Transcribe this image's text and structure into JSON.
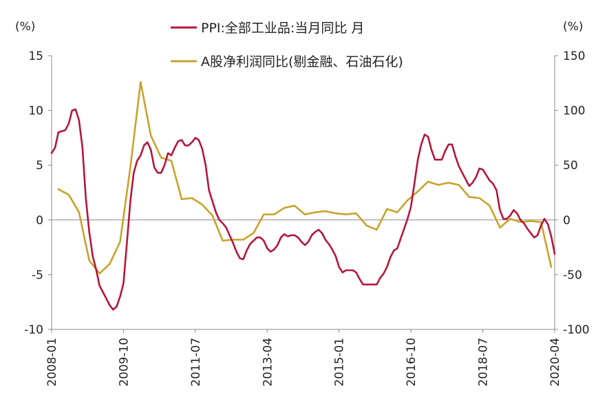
{
  "chart_data": {
    "type": "line",
    "left_unit": "(%)",
    "right_unit": "(%)",
    "y_left": {
      "min": -10,
      "max": 15,
      "ticks": [
        15,
        10,
        5,
        0,
        -5,
        -10
      ]
    },
    "y_right": {
      "min": -100,
      "max": 150,
      "ticks": [
        150,
        100,
        50,
        0,
        -50,
        -100
      ]
    },
    "x_range": [
      "2008-01",
      "2020-04"
    ],
    "x_ticks": [
      "2008-01",
      "2009-10",
      "2011-07",
      "2013-04",
      "2015-01",
      "2016-10",
      "2018-07",
      "2020-04"
    ],
    "colors": {
      "ppi": "#b5153a",
      "profit": "#c9a22a",
      "axis": "#888888"
    },
    "series": [
      {
        "name": "PPI:全部工业品:当月同比 月",
        "axis": "left",
        "x": [
          "2008-01",
          "2008-02",
          "2008-03",
          "2008-04",
          "2008-05",
          "2008-06",
          "2008-07",
          "2008-08",
          "2008-09",
          "2008-10",
          "2008-11",
          "2008-12",
          "2009-01",
          "2009-02",
          "2009-03",
          "2009-04",
          "2009-05",
          "2009-06",
          "2009-07",
          "2009-08",
          "2009-09",
          "2009-10",
          "2009-11",
          "2009-12",
          "2010-01",
          "2010-02",
          "2010-03",
          "2010-04",
          "2010-05",
          "2010-06",
          "2010-07",
          "2010-08",
          "2010-09",
          "2010-10",
          "2010-11",
          "2010-12",
          "2011-01",
          "2011-02",
          "2011-03",
          "2011-04",
          "2011-05",
          "2011-06",
          "2011-07",
          "2011-08",
          "2011-09",
          "2011-10",
          "2011-11",
          "2011-12",
          "2012-01",
          "2012-02",
          "2012-03",
          "2012-04",
          "2012-05",
          "2012-06",
          "2012-07",
          "2012-08",
          "2012-09",
          "2012-10",
          "2012-11",
          "2012-12",
          "2013-01",
          "2013-02",
          "2013-03",
          "2013-04",
          "2013-05",
          "2013-06",
          "2013-07",
          "2013-08",
          "2013-09",
          "2013-10",
          "2013-11",
          "2013-12",
          "2014-01",
          "2014-02",
          "2014-03",
          "2014-04",
          "2014-05",
          "2014-06",
          "2014-07",
          "2014-08",
          "2014-09",
          "2014-10",
          "2014-11",
          "2014-12",
          "2015-01",
          "2015-02",
          "2015-03",
          "2015-04",
          "2015-05",
          "2015-06",
          "2015-07",
          "2015-08",
          "2015-09",
          "2015-10",
          "2015-11",
          "2015-12",
          "2016-01",
          "2016-02",
          "2016-03",
          "2016-04",
          "2016-05",
          "2016-06",
          "2016-07",
          "2016-08",
          "2016-09",
          "2016-10",
          "2016-11",
          "2016-12",
          "2017-01",
          "2017-02",
          "2017-03",
          "2017-04",
          "2017-05",
          "2017-06",
          "2017-07",
          "2017-08",
          "2017-09",
          "2017-10",
          "2017-11",
          "2017-12",
          "2018-01",
          "2018-02",
          "2018-03",
          "2018-04",
          "2018-05",
          "2018-06",
          "2018-07",
          "2018-08",
          "2018-09",
          "2018-10",
          "2018-11",
          "2018-12",
          "2019-01",
          "2019-02",
          "2019-03",
          "2019-04",
          "2019-05",
          "2019-06",
          "2019-07",
          "2019-08",
          "2019-09",
          "2019-10",
          "2019-11",
          "2019-12",
          "2020-01",
          "2020-02",
          "2020-03",
          "2020-04"
        ],
        "values": [
          6.1,
          6.6,
          8.0,
          8.1,
          8.2,
          8.8,
          10.0,
          10.1,
          9.1,
          6.6,
          2.0,
          -1.1,
          -3.3,
          -4.5,
          -6.0,
          -6.6,
          -7.2,
          -7.8,
          -8.2,
          -7.9,
          -7.0,
          -5.8,
          -2.1,
          1.7,
          4.3,
          5.4,
          5.9,
          6.8,
          7.1,
          6.4,
          4.8,
          4.3,
          4.3,
          5.0,
          6.1,
          5.9,
          6.6,
          7.2,
          7.3,
          6.8,
          6.8,
          7.1,
          7.5,
          7.3,
          6.5,
          5.0,
          2.7,
          1.7,
          0.7,
          0.0,
          -0.3,
          -0.7,
          -1.4,
          -2.1,
          -2.9,
          -3.5,
          -3.6,
          -2.8,
          -2.2,
          -1.9,
          -1.6,
          -1.6,
          -1.9,
          -2.6,
          -2.9,
          -2.7,
          -2.3,
          -1.6,
          -1.3,
          -1.5,
          -1.4,
          -1.4,
          -1.6,
          -2.0,
          -2.3,
          -2.0,
          -1.4,
          -1.1,
          -0.9,
          -1.2,
          -1.8,
          -2.2,
          -2.7,
          -3.3,
          -4.3,
          -4.8,
          -4.6,
          -4.6,
          -4.6,
          -4.8,
          -5.4,
          -5.9,
          -5.9,
          -5.9,
          -5.9,
          -5.9,
          -5.3,
          -4.9,
          -4.3,
          -3.4,
          -2.8,
          -2.6,
          -1.7,
          -0.8,
          0.1,
          1.2,
          3.3,
          5.5,
          6.9,
          7.8,
          7.6,
          6.4,
          5.5,
          5.5,
          5.5,
          6.3,
          6.9,
          6.9,
          5.8,
          4.9,
          4.3,
          3.7,
          3.1,
          3.4,
          3.9,
          4.7,
          4.6,
          4.1,
          3.6,
          3.3,
          2.7,
          0.9,
          0.1,
          0.1,
          0.4,
          0.9,
          0.6,
          0.0,
          -0.3,
          -0.8,
          -1.2,
          -1.6,
          -1.4,
          -0.5,
          0.1,
          -0.4,
          -1.5,
          -3.1
        ]
      },
      {
        "name": "A股净利润同比(剔金融、石油石化)",
        "axis": "right",
        "x": [
          "2008-03",
          "2008-06",
          "2008-09",
          "2008-12",
          "2009-03",
          "2009-06",
          "2009-09",
          "2009-12",
          "2010-03",
          "2010-06",
          "2010-09",
          "2010-12",
          "2011-03",
          "2011-06",
          "2011-09",
          "2011-12",
          "2012-03",
          "2012-06",
          "2012-09",
          "2012-12",
          "2013-03",
          "2013-06",
          "2013-09",
          "2013-12",
          "2014-03",
          "2014-06",
          "2014-09",
          "2014-12",
          "2015-03",
          "2015-06",
          "2015-09",
          "2015-12",
          "2016-03",
          "2016-06",
          "2016-09",
          "2016-12",
          "2017-03",
          "2017-06",
          "2017-09",
          "2017-12",
          "2018-03",
          "2018-06",
          "2018-09",
          "2018-12",
          "2019-03",
          "2019-06",
          "2019-09",
          "2019-12",
          "2020-03"
        ],
        "values": [
          28,
          23,
          7,
          -37,
          -49,
          -40,
          -20,
          48,
          126,
          77,
          57,
          54,
          19,
          20,
          14,
          4,
          -19,
          -18,
          -18,
          -12,
          5,
          5,
          11,
          13,
          5,
          7,
          8,
          6,
          5,
          6,
          -5,
          -9,
          10,
          7,
          18,
          26,
          35,
          32,
          34,
          32,
          21,
          20,
          13,
          -7,
          1,
          -2,
          -1,
          -2,
          -43
        ]
      }
    ]
  }
}
